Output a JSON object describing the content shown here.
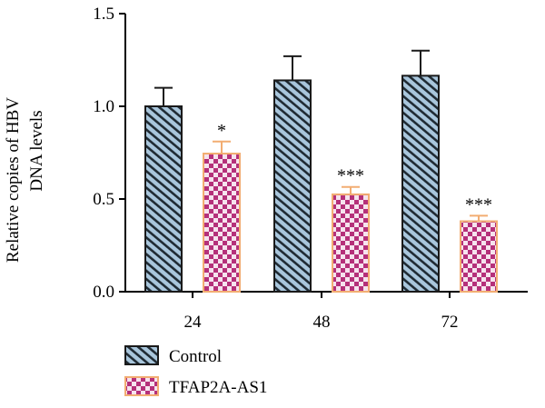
{
  "chart_data": {
    "type": "bar",
    "categories": [
      "24",
      "48",
      "72"
    ],
    "series": [
      {
        "name": "Control",
        "values": [
          1.0,
          1.14,
          1.165
        ],
        "errors": [
          0.1,
          0.13,
          0.135
        ],
        "significance": [
          "",
          "",
          ""
        ],
        "pattern": "diagonal-stripes",
        "color": "#a9c6dc",
        "stroke": "#1a1a1a"
      },
      {
        "name": "TFAP2A-AS1",
        "values": [
          0.745,
          0.525,
          0.38
        ],
        "errors": [
          0.065,
          0.04,
          0.03
        ],
        "significance": [
          "*",
          "***",
          "***"
        ],
        "pattern": "checkerboard",
        "color": "#b5307a",
        "stroke": "#f2ad72"
      }
    ],
    "ylabel": "Relative copies of HBV DNA levels",
    "ylabel_lines": [
      "Relative copies of HBV",
      "DNA levels"
    ],
    "xlabel": "",
    "ylim": [
      0,
      1.5
    ],
    "yticks": [
      "0.0",
      "0.5",
      "1.0",
      "1.5"
    ],
    "grid": false,
    "legend_position": "bottom-left"
  }
}
